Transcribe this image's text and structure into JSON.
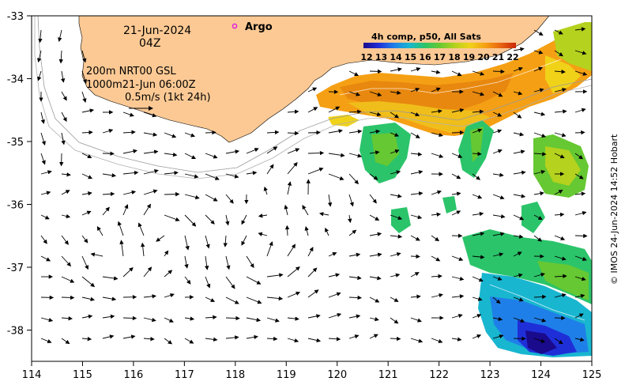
{
  "map": {
    "date_label": "21-Jun-2024",
    "time_label": "04Z",
    "argo_label": "Argo",
    "model_line1": "200m  NRT00 GSL",
    "model_line2": "1000m21-Jun 06:00Z",
    "scale_label": "0.5m/s (1kt 24h)",
    "colorbar_title": "4h comp, p50, All Sats",
    "credit": "© IMOS 24-Jun-2024 14:52 Hobart",
    "colors": {
      "land": "#fcc994",
      "sea": "#ffffff",
      "argo": "#e020e0"
    }
  },
  "axes": {
    "x_ticks": [
      "114",
      "115",
      "116",
      "117",
      "118",
      "119",
      "120",
      "121",
      "122",
      "123",
      "124",
      "125"
    ],
    "y_ticks": [
      "-33",
      "-34",
      "-35",
      "-36",
      "-37",
      "-38"
    ]
  },
  "colorbar": {
    "ticks": [
      "12",
      "13",
      "14",
      "15",
      "16",
      "17",
      "18",
      "19",
      "20",
      "21",
      "22"
    ],
    "colors": [
      "#1a0a8c",
      "#1f2fd8",
      "#1f7fe8",
      "#19b6d0",
      "#2bc46a",
      "#66c832",
      "#b4d21e",
      "#f0d219",
      "#f5a014",
      "#e86410",
      "#c8280a"
    ]
  }
}
